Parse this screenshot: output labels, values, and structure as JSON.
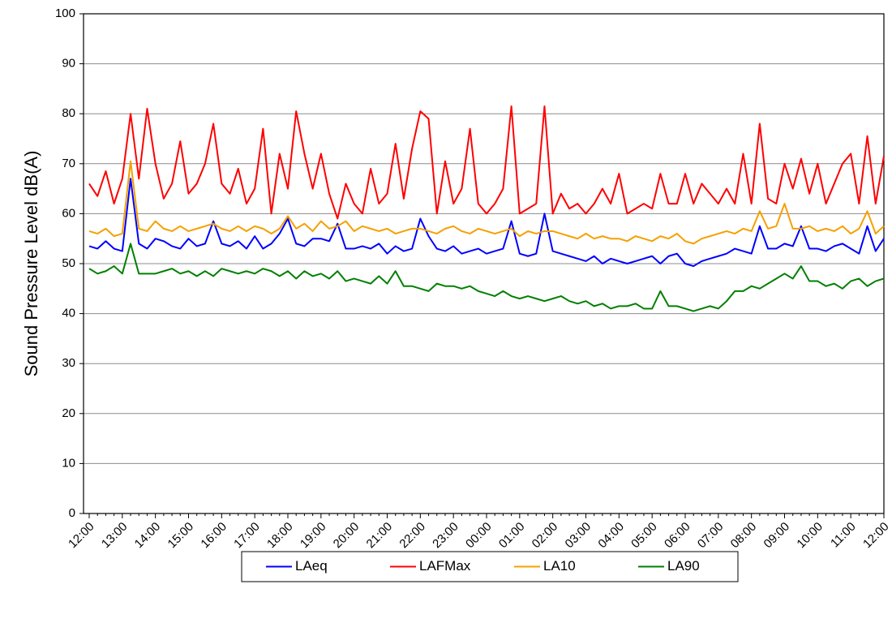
{
  "chart_data": {
    "type": "line",
    "y_label": "Sound Pressure Level dB(A)",
    "categories": [
      "12:00",
      null,
      null,
      null,
      "13:00",
      null,
      null,
      null,
      "14:00",
      null,
      null,
      null,
      "15:00",
      null,
      null,
      null,
      "16:00",
      null,
      null,
      null,
      "17:00",
      null,
      null,
      null,
      "18:00",
      null,
      null,
      null,
      "19:00",
      null,
      null,
      null,
      "20:00",
      null,
      null,
      null,
      "21:00",
      null,
      null,
      null,
      "22:00",
      null,
      null,
      null,
      "23:00",
      null,
      null,
      null,
      "00:00",
      null,
      null,
      null,
      "01:00",
      null,
      null,
      null,
      "02:00",
      null,
      null,
      null,
      "03:00",
      null,
      null,
      null,
      "04:00",
      null,
      null,
      null,
      "05:00",
      null,
      null,
      null,
      "06:00",
      null,
      null,
      null,
      "07:00",
      null,
      null,
      null,
      "08:00",
      null,
      null,
      null,
      "09:00",
      null,
      null,
      null,
      "10:00",
      null,
      null,
      null,
      "11:00",
      null,
      null,
      null,
      "12:00"
    ],
    "series": [
      {
        "name": "LAeq",
        "color": "#0000ff",
        "values": [
          53.5,
          53,
          54.5,
          53,
          52.5,
          67,
          54,
          53,
          55,
          54.5,
          53.5,
          53,
          55,
          53.5,
          54,
          58.5,
          54,
          53.5,
          54.5,
          53,
          55.5,
          53,
          54,
          56,
          59,
          54,
          53.5,
          55,
          55,
          54.5,
          58,
          53,
          53,
          53.5,
          53,
          54,
          52,
          53.5,
          52.5,
          53,
          59,
          55.5,
          53,
          52.5,
          53.5,
          52,
          52.5,
          53,
          52,
          52.5,
          53,
          58.5,
          52,
          51.5,
          52,
          60,
          52.5,
          52,
          51.5,
          51,
          50.5,
          51.5,
          50,
          51,
          50.5,
          50,
          50.5,
          51,
          51.5,
          50,
          51.5,
          52,
          50,
          49.5,
          50.5,
          51,
          51.5,
          52,
          53,
          52.5,
          52,
          57.5,
          53,
          53,
          54,
          53.5,
          57.5,
          53,
          53,
          52.5,
          53.5,
          54,
          53,
          52,
          57.5,
          52.5,
          55
        ]
      },
      {
        "name": "LAFMax",
        "color": "#ff0000",
        "values": [
          66,
          63.5,
          68.5,
          62,
          67,
          80,
          67,
          81,
          70,
          63,
          66,
          74.5,
          64,
          66,
          70,
          78,
          66,
          64,
          69,
          62,
          65,
          77,
          60,
          72,
          65,
          80.5,
          72,
          65,
          72,
          64,
          59,
          66,
          62,
          60,
          69,
          62,
          64,
          74,
          63,
          73,
          80.5,
          79,
          60,
          70.5,
          62,
          65,
          77,
          62,
          60,
          62,
          65,
          81.5,
          60,
          61,
          62,
          81.5,
          60,
          64,
          61,
          62,
          60,
          62,
          65,
          62,
          68,
          60,
          61,
          62,
          61,
          68,
          62,
          62,
          68,
          62,
          66,
          64,
          62,
          65,
          62,
          72,
          62,
          78,
          63,
          62,
          70,
          65,
          71,
          64,
          70,
          62,
          66,
          70,
          72,
          62,
          75.5,
          62,
          71.5
        ]
      },
      {
        "name": "LA10",
        "color": "#f5a000",
        "values": [
          56.5,
          56,
          57,
          55.5,
          56,
          70.5,
          57,
          56.5,
          58.5,
          57,
          56.5,
          57.5,
          56.5,
          57,
          57.5,
          58,
          57,
          56.5,
          57.5,
          56.5,
          57.5,
          57,
          56,
          57,
          59.5,
          57,
          58,
          56.5,
          58.5,
          57,
          57.5,
          58.5,
          56.5,
          57.5,
          57,
          56.5,
          57,
          56,
          56.5,
          57,
          57,
          56.5,
          56,
          57,
          57.5,
          56.5,
          56,
          57,
          56.5,
          56,
          56.5,
          57,
          55.5,
          56.5,
          56,
          56.5,
          56.5,
          56,
          55.5,
          55,
          56,
          55,
          55.5,
          55,
          55,
          54.5,
          55.5,
          55,
          54.5,
          55.5,
          55,
          56,
          54.5,
          54,
          55,
          55.5,
          56,
          56.5,
          56,
          57,
          56.5,
          60.5,
          57,
          57.5,
          62,
          57,
          57,
          57.5,
          56.5,
          57,
          56.5,
          57.5,
          56,
          57,
          60.5,
          56,
          57.5
        ]
      },
      {
        "name": "LA90",
        "color": "#008000",
        "values": [
          49,
          48,
          48.5,
          49.5,
          48,
          54,
          48,
          48,
          48,
          48.5,
          49,
          48,
          48.5,
          47.5,
          48.5,
          47.5,
          49,
          48.5,
          48,
          48.5,
          48,
          49,
          48.5,
          47.5,
          48.5,
          47,
          48.5,
          47.5,
          48,
          47,
          48.5,
          46.5,
          47,
          46.5,
          46,
          47.5,
          46,
          48.5,
          45.5,
          45.5,
          45,
          44.5,
          46,
          45.5,
          45.5,
          45,
          45.5,
          44.5,
          44,
          43.5,
          44.5,
          43.5,
          43,
          43.5,
          43,
          42.5,
          43,
          43.5,
          42.5,
          42,
          42.5,
          41.5,
          42,
          41,
          41.5,
          41.5,
          42,
          41,
          41,
          44.5,
          41.5,
          41.5,
          41,
          40.5,
          41,
          41.5,
          41,
          42.5,
          44.5,
          44.5,
          45.5,
          45,
          46,
          47,
          48,
          47,
          49.5,
          46.5,
          46.5,
          45.5,
          46,
          45,
          46.5,
          47,
          45.5,
          46.5,
          47
        ]
      }
    ],
    "ylim": [
      0,
      100
    ],
    "yticks": [
      0,
      10,
      20,
      30,
      40,
      50,
      60,
      70,
      80,
      90,
      100
    ],
    "grid": true,
    "legend": "bottom"
  }
}
